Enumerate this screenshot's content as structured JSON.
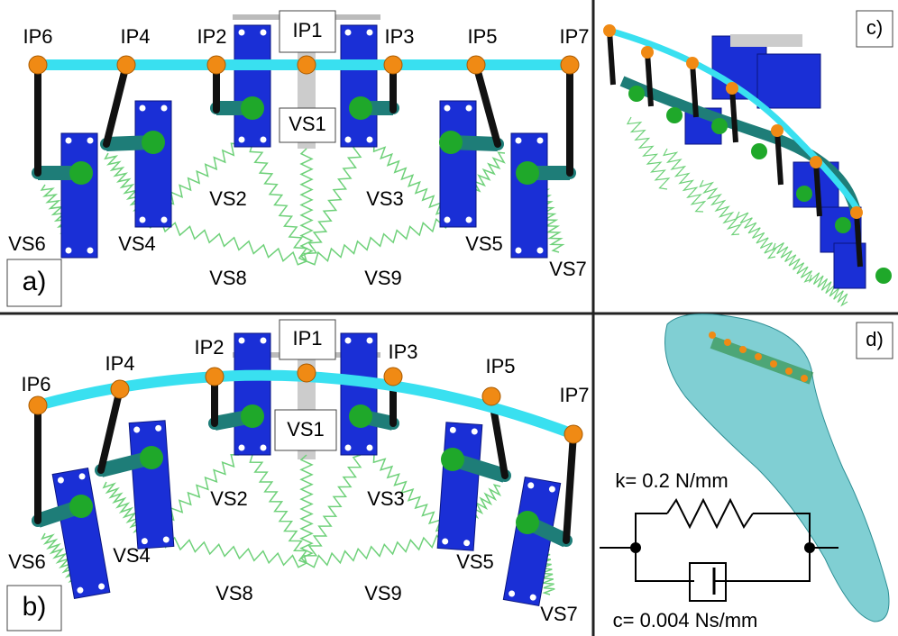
{
  "panel_a": {
    "label": "a)",
    "points": [
      "IP6",
      "IP4",
      "IP2",
      "IP1",
      "IP3",
      "IP5",
      "IP7"
    ],
    "springs": [
      "VS1",
      "VS2",
      "VS3",
      "VS4",
      "VS5",
      "VS6",
      "VS7",
      "VS8",
      "VS9"
    ]
  },
  "panel_b": {
    "label": "b)",
    "points": [
      "IP6",
      "IP4",
      "IP2",
      "IP1",
      "IP3",
      "IP5",
      "IP7"
    ],
    "springs": [
      "VS1",
      "VS2",
      "VS3",
      "VS4",
      "VS5",
      "VS6",
      "VS7",
      "VS8",
      "VS9"
    ]
  },
  "panel_c": {
    "label": "c)"
  },
  "panel_d": {
    "label": "d)",
    "spring_constant": "k= 0.2 N/mm",
    "damping": "c= 0.004 Ns/mm"
  }
}
